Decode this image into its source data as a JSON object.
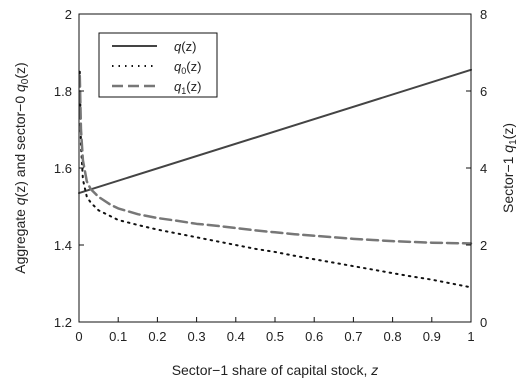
{
  "chart_data": {
    "type": "line",
    "xlabel": {
      "main": "Sector−1 share of capital stock, ",
      "var": "z"
    },
    "ylabel_left": {
      "p1": "Aggregate ",
      "q1": "q",
      "p2": "(z) and sector−0 ",
      "q2": "q",
      "sub": "0",
      "p3": "(z)"
    },
    "ylabel_right": {
      "p1": "Sector−1 ",
      "q": "q",
      "sub": "1",
      "p2": "(z)"
    },
    "xlim": [
      0,
      1
    ],
    "ylim_left": [
      1.2,
      2.0
    ],
    "ylim_right": [
      0,
      8
    ],
    "x_ticks": [
      "0",
      "0.1",
      "0.2",
      "0.3",
      "0.4",
      "0.5",
      "0.6",
      "0.7",
      "0.8",
      "0.9",
      "1"
    ],
    "y_left_ticks": [
      "1.2",
      "1.4",
      "1.6",
      "1.8",
      "2"
    ],
    "y_right_ticks": [
      "0",
      "2",
      "4",
      "6",
      "8"
    ],
    "legend_position": "top-left",
    "legend": [
      {
        "q": "q",
        "sub": "",
        "rest": "(z)",
        "style": "solid"
      },
      {
        "q": "q",
        "sub": "0",
        "rest": "(z)",
        "style": "dotted"
      },
      {
        "q": "q",
        "sub": "1",
        "rest": "(z)",
        "style": "dashed"
      }
    ],
    "series": [
      {
        "axis": "left",
        "style": "solid",
        "color": "#444444",
        "x": [
          0,
          1
        ],
        "y": [
          1.535,
          1.855
        ]
      },
      {
        "axis": "left",
        "style": "dotted",
        "color": "#111111",
        "x": [
          0.002,
          0.005,
          0.01,
          0.02,
          0.03,
          0.05,
          0.08,
          0.1,
          0.15,
          0.2,
          0.25,
          0.3,
          0.35,
          0.4,
          0.45,
          0.5,
          0.55,
          0.6,
          0.65,
          0.7,
          0.75,
          0.8,
          0.85,
          0.9,
          0.95,
          1.0
        ],
        "y": [
          1.85,
          1.66,
          1.57,
          1.525,
          1.51,
          1.49,
          1.475,
          1.465,
          1.452,
          1.44,
          1.43,
          1.42,
          1.41,
          1.4,
          1.39,
          1.382,
          1.372,
          1.363,
          1.354,
          1.345,
          1.336,
          1.327,
          1.318,
          1.31,
          1.3,
          1.29
        ]
      },
      {
        "axis": "right",
        "style": "dashed",
        "color": "#777777",
        "x": [
          0.002,
          0.005,
          0.01,
          0.02,
          0.03,
          0.05,
          0.08,
          0.1,
          0.15,
          0.2,
          0.25,
          0.3,
          0.35,
          0.4,
          0.45,
          0.5,
          0.55,
          0.6,
          0.65,
          0.7,
          0.75,
          0.8,
          0.85,
          0.9,
          0.95,
          1.0
        ],
        "y": [
          6.4,
          5.0,
          4.2,
          3.65,
          3.45,
          3.25,
          3.05,
          2.95,
          2.8,
          2.7,
          2.63,
          2.55,
          2.5,
          2.44,
          2.38,
          2.33,
          2.28,
          2.24,
          2.2,
          2.16,
          2.13,
          2.1,
          2.08,
          2.06,
          2.05,
          2.04
        ]
      }
    ]
  }
}
